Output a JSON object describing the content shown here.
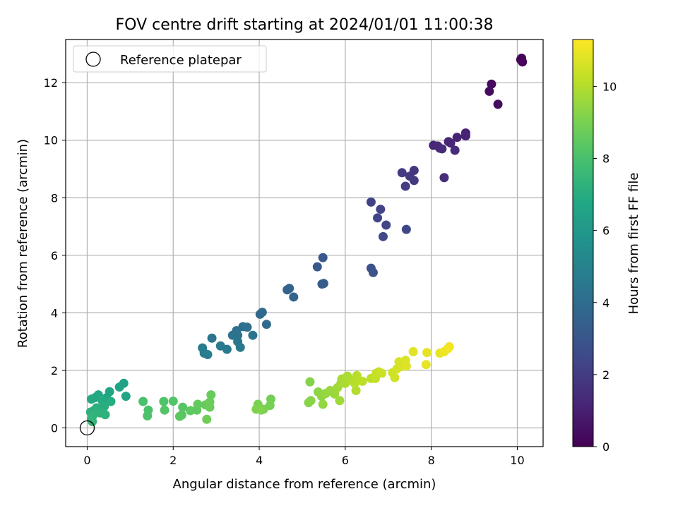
{
  "chart_data": {
    "type": "scatter",
    "title": "FOV centre drift starting at 2024/01/01 11:00:38",
    "xlabel": "Angular distance from reference (arcmin)",
    "ylabel": "Rotation from reference (arcmin)",
    "xlim": [
      -0.5,
      10.6
    ],
    "ylim": [
      -0.65,
      13.5
    ],
    "xticks": [
      0,
      2,
      4,
      6,
      8,
      10
    ],
    "yticks": [
      0,
      2,
      4,
      6,
      8,
      10,
      12
    ],
    "grid": true,
    "legend": {
      "placement": "top-left",
      "entries": [
        "Reference platepar"
      ]
    },
    "reference_point": {
      "x": 0,
      "y": 0,
      "label": "Reference platepar"
    },
    "colorbar": {
      "label": "Hours from first FF file",
      "colormap": "viridis",
      "range": [
        0,
        11.3
      ],
      "ticks": [
        0,
        2,
        4,
        6,
        8,
        10
      ]
    },
    "series": [
      {
        "points": [
          [
            10.1,
            12.85,
            0.05
          ],
          [
            10.08,
            12.8,
            0.1
          ],
          [
            10.12,
            12.72,
            0.15
          ],
          [
            9.4,
            11.95,
            0.3
          ],
          [
            9.35,
            11.7,
            0.35
          ],
          [
            9.55,
            11.25,
            0.4
          ],
          [
            8.8,
            10.25,
            1.0
          ],
          [
            8.8,
            10.15,
            1.05
          ],
          [
            8.6,
            10.1,
            1.1
          ],
          [
            8.4,
            9.95,
            1.15
          ],
          [
            8.45,
            9.9,
            1.2
          ],
          [
            8.05,
            9.82,
            1.25
          ],
          [
            8.15,
            9.8,
            1.3
          ],
          [
            8.2,
            9.72,
            1.35
          ],
          [
            8.25,
            9.7,
            1.4
          ],
          [
            8.55,
            9.65,
            1.45
          ],
          [
            8.3,
            8.7,
            1.5
          ],
          [
            7.6,
            8.95,
            1.8
          ],
          [
            7.5,
            8.75,
            1.85
          ],
          [
            7.32,
            8.87,
            1.9
          ],
          [
            7.6,
            8.6,
            1.95
          ],
          [
            7.4,
            8.4,
            2.0
          ],
          [
            6.6,
            7.85,
            2.2
          ],
          [
            6.82,
            7.6,
            2.25
          ],
          [
            6.75,
            7.3,
            2.3
          ],
          [
            6.95,
            7.05,
            2.35
          ],
          [
            7.42,
            6.9,
            2.4
          ],
          [
            6.88,
            6.65,
            2.45
          ],
          [
            6.6,
            5.55,
            2.8
          ],
          [
            6.65,
            5.4,
            2.85
          ],
          [
            5.48,
            5.92,
            3.1
          ],
          [
            5.35,
            5.6,
            3.15
          ],
          [
            5.46,
            5.0,
            3.2
          ],
          [
            5.5,
            5.02,
            3.25
          ],
          [
            4.7,
            4.85,
            3.5
          ],
          [
            4.65,
            4.8,
            3.55
          ],
          [
            4.8,
            4.55,
            3.6
          ],
          [
            4.07,
            4.02,
            3.8
          ],
          [
            4.02,
            3.95,
            3.85
          ],
          [
            4.17,
            3.6,
            3.9
          ],
          [
            3.62,
            3.52,
            4.1
          ],
          [
            3.72,
            3.5,
            4.15
          ],
          [
            3.47,
            3.38,
            4.2
          ],
          [
            3.5,
            3.22,
            4.25
          ],
          [
            3.38,
            3.22,
            4.3
          ],
          [
            3.85,
            3.22,
            4.35
          ],
          [
            2.9,
            3.12,
            4.4
          ],
          [
            3.5,
            3.0,
            4.45
          ],
          [
            3.56,
            2.8,
            4.5
          ],
          [
            3.1,
            2.85,
            4.55
          ],
          [
            3.25,
            2.73,
            4.6
          ],
          [
            2.68,
            2.78,
            4.65
          ],
          [
            2.72,
            2.6,
            4.7
          ],
          [
            2.8,
            2.55,
            4.75
          ],
          [
            0.85,
            1.55,
            6.5
          ],
          [
            0.75,
            1.42,
            6.55
          ],
          [
            0.9,
            1.1,
            6.6
          ],
          [
            0.52,
            1.26,
            6.65
          ],
          [
            0.45,
            1.05,
            6.7
          ],
          [
            0.18,
            1.05,
            6.75
          ],
          [
            0.26,
            1.15,
            6.8
          ],
          [
            0.1,
            1.0,
            6.85
          ],
          [
            0.35,
            0.95,
            6.9
          ],
          [
            0.55,
            0.92,
            6.95
          ],
          [
            0.4,
            0.75,
            7.0
          ],
          [
            0.22,
            0.7,
            7.05
          ],
          [
            0.08,
            0.55,
            7.1
          ],
          [
            0.15,
            0.6,
            7.15
          ],
          [
            0.3,
            0.52,
            7.2
          ],
          [
            0.42,
            0.46,
            7.25
          ],
          [
            0.13,
            0.42,
            7.3
          ],
          [
            0.1,
            0.3,
            7.35
          ],
          [
            0.12,
            0.22,
            7.4
          ],
          [
            1.3,
            0.92,
            8.0
          ],
          [
            1.42,
            0.62,
            8.05
          ],
          [
            1.4,
            0.42,
            8.1
          ],
          [
            1.78,
            0.92,
            8.15
          ],
          [
            2.0,
            0.93,
            8.2
          ],
          [
            1.8,
            0.62,
            8.25
          ],
          [
            2.22,
            0.72,
            8.3
          ],
          [
            2.2,
            0.45,
            8.35
          ],
          [
            2.15,
            0.4,
            8.4
          ],
          [
            2.4,
            0.6,
            8.45
          ],
          [
            2.55,
            0.62,
            8.5
          ],
          [
            2.57,
            0.82,
            8.55
          ],
          [
            2.75,
            0.8,
            8.6
          ],
          [
            2.88,
            1.15,
            8.65
          ],
          [
            2.85,
            0.9,
            8.7
          ],
          [
            2.85,
            0.72,
            8.75
          ],
          [
            2.78,
            0.3,
            8.8
          ],
          [
            4.27,
            1.0,
            8.9
          ],
          [
            4.25,
            0.78,
            8.95
          ],
          [
            4.1,
            0.65,
            9.0
          ],
          [
            3.97,
            0.82,
            9.05
          ],
          [
            3.93,
            0.65,
            9.1
          ],
          [
            4.05,
            0.62,
            9.15
          ],
          [
            5.18,
            1.6,
            9.2
          ],
          [
            5.15,
            0.88,
            9.25
          ],
          [
            5.2,
            0.95,
            9.3
          ],
          [
            5.37,
            1.25,
            9.35
          ],
          [
            5.45,
            1.1,
            9.4
          ],
          [
            5.48,
            0.82,
            9.45
          ],
          [
            5.55,
            1.2,
            9.5
          ],
          [
            5.65,
            1.3,
            9.55
          ],
          [
            5.75,
            1.18,
            9.6
          ],
          [
            5.87,
            0.95,
            9.65
          ],
          [
            5.82,
            1.4,
            9.7
          ],
          [
            5.9,
            1.55,
            9.75
          ],
          [
            5.92,
            1.7,
            9.8
          ],
          [
            6.0,
            1.55,
            9.85
          ],
          [
            6.05,
            1.8,
            9.9
          ],
          [
            6.15,
            1.65,
            9.95
          ],
          [
            6.25,
            1.3,
            10.0
          ],
          [
            6.22,
            1.55,
            10.05
          ],
          [
            6.27,
            1.82,
            10.1
          ],
          [
            6.4,
            1.62,
            10.15
          ],
          [
            6.6,
            1.72,
            10.2
          ],
          [
            6.72,
            1.9,
            10.25
          ],
          [
            6.7,
            1.72,
            10.3
          ],
          [
            6.78,
            1.95,
            10.35
          ],
          [
            6.85,
            1.9,
            10.4
          ],
          [
            7.1,
            1.92,
            10.45
          ],
          [
            7.15,
            1.75,
            10.5
          ],
          [
            7.2,
            2.05,
            10.55
          ],
          [
            7.25,
            2.3,
            10.6
          ],
          [
            7.35,
            2.15,
            10.65
          ],
          [
            7.4,
            2.35,
            10.7
          ],
          [
            7.42,
            2.15,
            10.75
          ],
          [
            7.58,
            2.65,
            10.8
          ],
          [
            7.9,
            2.62,
            10.85
          ],
          [
            7.88,
            2.2,
            10.9
          ],
          [
            8.2,
            2.6,
            10.95
          ],
          [
            8.3,
            2.65,
            11.0
          ],
          [
            8.38,
            2.75,
            11.05
          ],
          [
            8.42,
            2.82,
            11.1
          ]
        ]
      }
    ]
  }
}
